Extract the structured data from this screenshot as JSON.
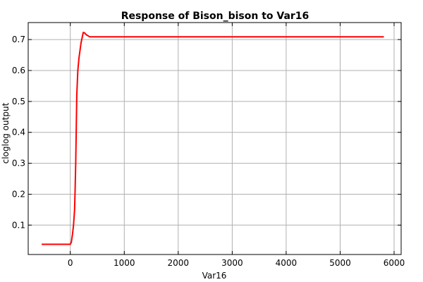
{
  "chart_data": {
    "type": "line",
    "title": "Response of Bison_bison to Var16",
    "xlabel": "Var16",
    "ylabel": "cloglog output",
    "xlim": [
      -780,
      6130
    ],
    "ylim": [
      0.005,
      0.755
    ],
    "xticks": [
      0,
      1000,
      2000,
      3000,
      4000,
      5000,
      6000
    ],
    "xtick_labels": [
      "0",
      "1000",
      "2000",
      "3000",
      "4000",
      "5000",
      "6000"
    ],
    "yticks": [
      0.1,
      0.2,
      0.3,
      0.4,
      0.5,
      0.6,
      0.7
    ],
    "ytick_labels": [
      "0.1",
      "0.2",
      "0.3",
      "0.4",
      "0.5",
      "0.6",
      "0.7"
    ],
    "grid": true,
    "series": [
      {
        "color": "#ff0000",
        "x": [
          -520,
          -300,
          -100,
          0,
          20,
          40,
          60,
          80,
          90,
          100,
          110,
          120,
          140,
          160,
          200,
          240,
          260,
          300,
          360,
          400,
          1000,
          3000,
          5800
        ],
        "y": [
          0.038,
          0.038,
          0.038,
          0.038,
          0.045,
          0.07,
          0.1,
          0.15,
          0.22,
          0.3,
          0.4,
          0.52,
          0.6,
          0.64,
          0.69,
          0.723,
          0.722,
          0.715,
          0.709,
          0.709,
          0.709,
          0.709,
          0.709
        ]
      }
    ]
  }
}
